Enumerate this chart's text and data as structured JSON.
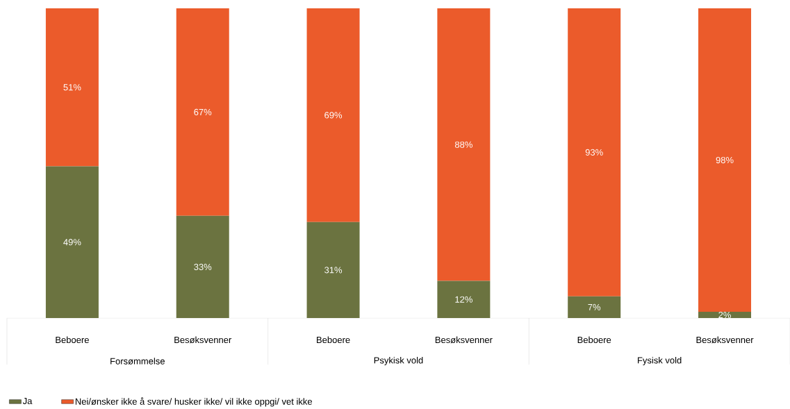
{
  "chart_data": {
    "type": "bar",
    "stacked": true,
    "categories": [
      "Beboere",
      "Besøksvenner",
      "Beboere",
      "Besøksvenner",
      "Beboere",
      "Besøksvenner"
    ],
    "series": [
      {
        "name": "Ja",
        "color": "#6b7340",
        "values": [
          49,
          33,
          31,
          12,
          7,
          2
        ],
        "value_labels": [
          "49%",
          "33%",
          "31%",
          "12%",
          "7%",
          "2%"
        ]
      },
      {
        "name": "Nei/ønsker ikke å svare/ husker ikke/ vil ikke oppgi/ vet ikke",
        "color": "#eb5b2b",
        "values": [
          51,
          67,
          69,
          88,
          93,
          98
        ],
        "value_labels": [
          "51%",
          "67%",
          "69%",
          "88%",
          "93%",
          "98%"
        ]
      }
    ],
    "ylim": [
      0,
      100
    ],
    "annotations": [
      "Forsømmelse",
      "Psykisk vold",
      "Fysisk vold"
    ],
    "legend": "bottom left"
  }
}
